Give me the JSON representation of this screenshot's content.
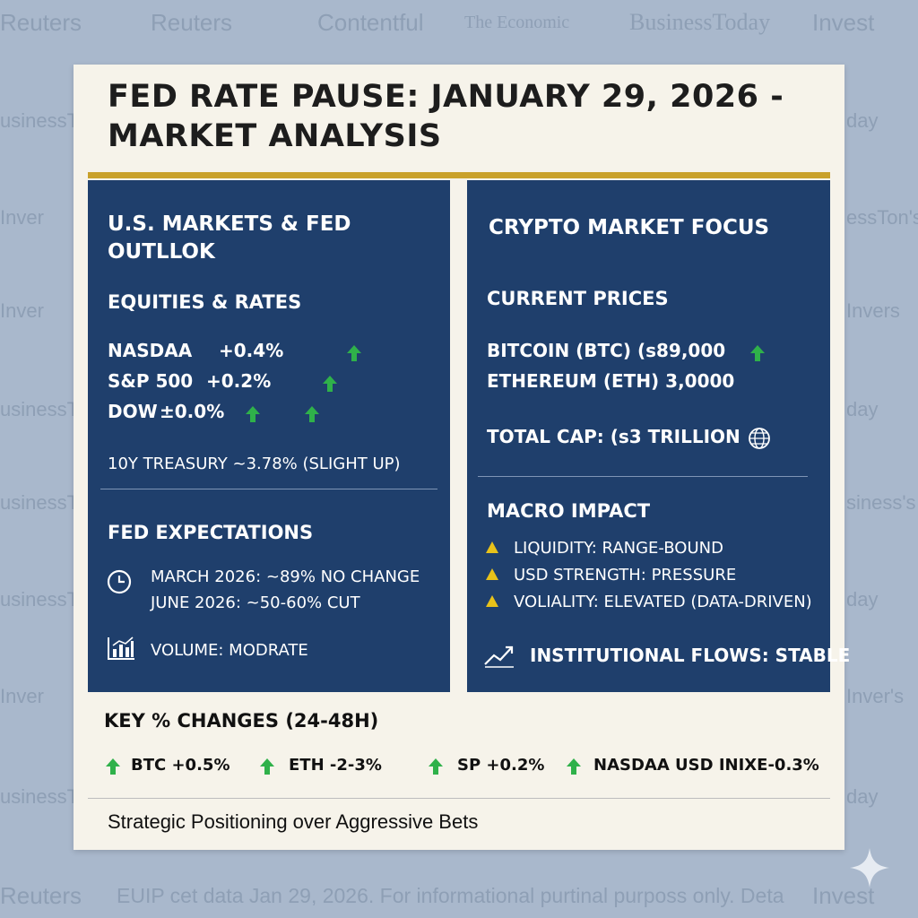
{
  "watermarks": {
    "top": [
      "Reuters",
      "Reuters",
      "Contentful",
      "The Economic",
      "BusinessToday",
      "Invest"
    ],
    "left_side": [
      "usinessTo",
      "Inver",
      "Inver",
      "usinessTo",
      "usinessTo",
      "usinessTo",
      "Inver",
      "usinessTo"
    ],
    "right_side": [
      "day",
      "essTon's",
      "Invers",
      "day",
      "siness's",
      "day",
      "Inver's",
      "day"
    ],
    "bottom_left": "Reuters",
    "bottom_right": "Invest"
  },
  "title": "FED RATE PAUSE: JANUARY 29, 2026 - MARKET ANALYSIS",
  "left_panel": {
    "heading": "U.S. MARKETS & FED OUTLLOK",
    "equities_heading": "EQUITIES & RATES",
    "equities": [
      {
        "name": "NASDAA",
        "change": "+0.4%"
      },
      {
        "name": "S&P 500",
        "change": "+0.2%"
      },
      {
        "name": "DOW",
        "change": "±0.0%"
      }
    ],
    "treasury": "10Y TREASURY ~3.78% (SLIGHT UP)",
    "fed_heading": "FED EXPECTATIONS",
    "fed_lines": [
      "MARCH 2026: ~89% NO CHANGE",
      "JUNE 2026: ~50-60% CUT"
    ],
    "volume": "VOLUME: MODRATE"
  },
  "right_panel": {
    "heading": "CRYPTO MARKET FOCUS",
    "prices_heading": "CURRENT PRICES",
    "prices": [
      "BITCOIN (BTC) (s89,000",
      "ETHEREUM (ETH) 3,0000"
    ],
    "total_cap": "TOTAL CAP: (s3 TRILLION",
    "macro_heading": "MACRO IMPACT",
    "macro_items": [
      "LIQUIDITY: RANGE-BOUND",
      "USD STRENGTH: PRESSURE",
      "VOLIALITY: ELEVATED (DATA-DRIVEN)"
    ],
    "flows": "INSTITUTIONAL FLOWS: STABLE"
  },
  "key_changes": {
    "heading": "KEY % CHANGES (24-48H)",
    "items": [
      "BTC  +0.5%",
      "ETH -2-3%",
      "SP  +0.2%",
      "NASDAA   USD INIXE-0.3%"
    ]
  },
  "tagline": "Strategic Positioning over Aggressive Bets",
  "footer_note": "EUIP  cet data Jan 29, 2026. For informational purtinal purposs only. Deta",
  "colors": {
    "panel": "#1f3f6c",
    "gold": "#c9a12b",
    "up_arrow": "#2fb14a",
    "warning": "#e8c21a"
  },
  "icons": [
    "up-arrow-icon",
    "clock-icon",
    "bar-chart-icon",
    "globe-icon",
    "warning-icon",
    "trend-line-icon",
    "sparkle-icon"
  ]
}
